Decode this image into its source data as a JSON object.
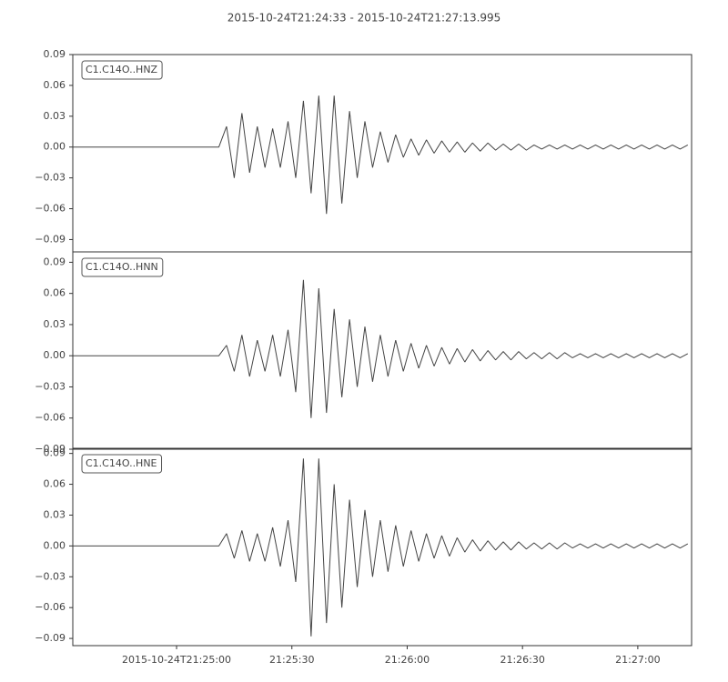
{
  "title": "2015-10-24T21:24:33  -  2015-10-24T21:27:13.995",
  "chart_data": [
    {
      "type": "line",
      "title": "C1.C14O..HNZ",
      "color": "#444444",
      "x": [
        "21:24:33",
        "21:24:35",
        "21:24:37",
        "21:24:39",
        "21:24:41",
        "21:24:43",
        "21:24:45",
        "21:24:47",
        "21:24:49",
        "21:24:51",
        "21:24:53",
        "21:24:55",
        "21:24:57",
        "21:24:59",
        "21:25:01",
        "21:25:03",
        "21:25:05",
        "21:25:07",
        "21:25:09",
        "21:25:11",
        "21:25:13",
        "21:25:15",
        "21:25:17",
        "21:25:19",
        "21:25:21",
        "21:25:23",
        "21:25:25",
        "21:25:27",
        "21:25:29",
        "21:25:31",
        "21:25:33",
        "21:25:35",
        "21:25:37",
        "21:25:39",
        "21:25:41",
        "21:25:43",
        "21:25:45",
        "21:25:47",
        "21:25:49",
        "21:25:51",
        "21:25:53",
        "21:25:55",
        "21:25:57",
        "21:25:59",
        "21:26:01",
        "21:26:03",
        "21:26:05",
        "21:26:07",
        "21:26:09",
        "21:26:11",
        "21:26:13",
        "21:26:15",
        "21:26:17",
        "21:26:19",
        "21:26:21",
        "21:26:23",
        "21:26:25",
        "21:26:27",
        "21:26:29",
        "21:26:31",
        "21:26:33",
        "21:26:35",
        "21:26:37",
        "21:26:39",
        "21:26:41",
        "21:26:43",
        "21:26:45",
        "21:26:47",
        "21:26:49",
        "21:26:51",
        "21:26:53",
        "21:26:55",
        "21:26:57",
        "21:26:59",
        "21:27:01",
        "21:27:03",
        "21:27:05",
        "21:27:07",
        "21:27:09",
        "21:27:11",
        "21:27:13"
      ],
      "values": [
        0,
        0,
        0,
        0,
        0,
        0,
        0,
        0,
        0,
        0,
        0,
        0,
        0,
        0,
        0,
        0,
        0,
        0,
        0,
        0,
        0.02,
        -0.03,
        0.033,
        -0.025,
        0.02,
        -0.02,
        0.018,
        -0.02,
        0.025,
        -0.03,
        0.045,
        -0.045,
        0.05,
        -0.065,
        0.05,
        -0.055,
        0.035,
        -0.03,
        0.025,
        -0.02,
        0.015,
        -0.015,
        0.012,
        -0.01,
        0.008,
        -0.008,
        0.007,
        -0.006,
        0.006,
        -0.005,
        0.005,
        -0.005,
        0.004,
        -0.004,
        0.004,
        -0.003,
        0.003,
        -0.003,
        0.003,
        -0.003,
        0.002,
        -0.002,
        0.002,
        -0.002,
        0.002,
        -0.002,
        0.002,
        -0.002,
        0.002,
        -0.002,
        0.002,
        -0.002,
        0.002,
        -0.002,
        0.002,
        -0.002,
        0.002,
        -0.002,
        0.002,
        -0.002,
        0.002
      ],
      "xlim": [
        "2015-10-24T21:24:33",
        "2015-10-24T21:27:13.995"
      ],
      "ylim": [
        -0.102,
        0.09
      ],
      "yticks": [
        0.09,
        0.06,
        0.03,
        {
          "value": 0,
          "label": "0.00"
        },
        {
          "value": -0.03,
          "label": "−0.03"
        },
        {
          "value": -0.06,
          "label": "−0.06"
        },
        {
          "value": -0.09,
          "label": "−0.09"
        }
      ]
    },
    {
      "type": "line",
      "title": "C1.C14O..HNN",
      "color": "#444444",
      "x": [
        "21:24:33",
        "21:24:35",
        "21:24:37",
        "21:24:39",
        "21:24:41",
        "21:24:43",
        "21:24:45",
        "21:24:47",
        "21:24:49",
        "21:24:51",
        "21:24:53",
        "21:24:55",
        "21:24:57",
        "21:24:59",
        "21:25:01",
        "21:25:03",
        "21:25:05",
        "21:25:07",
        "21:25:09",
        "21:25:11",
        "21:25:13",
        "21:25:15",
        "21:25:17",
        "21:25:19",
        "21:25:21",
        "21:25:23",
        "21:25:25",
        "21:25:27",
        "21:25:29",
        "21:25:31",
        "21:25:33",
        "21:25:35",
        "21:25:37",
        "21:25:39",
        "21:25:41",
        "21:25:43",
        "21:25:45",
        "21:25:47",
        "21:25:49",
        "21:25:51",
        "21:25:53",
        "21:25:55",
        "21:25:57",
        "21:25:59",
        "21:26:01",
        "21:26:03",
        "21:26:05",
        "21:26:07",
        "21:26:09",
        "21:26:11",
        "21:26:13",
        "21:26:15",
        "21:26:17",
        "21:26:19",
        "21:26:21",
        "21:26:23",
        "21:26:25",
        "21:26:27",
        "21:26:29",
        "21:26:31",
        "21:26:33",
        "21:26:35",
        "21:26:37",
        "21:26:39",
        "21:26:41",
        "21:26:43",
        "21:26:45",
        "21:26:47",
        "21:26:49",
        "21:26:51",
        "21:26:53",
        "21:26:55",
        "21:26:57",
        "21:26:59",
        "21:27:01",
        "21:27:03",
        "21:27:05",
        "21:27:07",
        "21:27:09",
        "21:27:11",
        "21:27:13"
      ],
      "values": [
        0,
        0,
        0,
        0,
        0,
        0,
        0,
        0,
        0,
        0,
        0,
        0,
        0,
        0,
        0,
        0,
        0,
        0,
        0,
        0,
        0.01,
        -0.015,
        0.02,
        -0.02,
        0.015,
        -0.015,
        0.02,
        -0.02,
        0.025,
        -0.035,
        0.073,
        -0.06,
        0.065,
        -0.055,
        0.045,
        -0.04,
        0.035,
        -0.03,
        0.028,
        -0.025,
        0.02,
        -0.02,
        0.015,
        -0.015,
        0.012,
        -0.012,
        0.01,
        -0.01,
        0.008,
        -0.008,
        0.007,
        -0.006,
        0.006,
        -0.005,
        0.005,
        -0.004,
        0.004,
        -0.004,
        0.004,
        -0.003,
        0.003,
        -0.003,
        0.003,
        -0.003,
        0.003,
        -0.002,
        0.002,
        -0.002,
        0.002,
        -0.002,
        0.002,
        -0.002,
        0.002,
        -0.002,
        0.002,
        -0.002,
        0.002,
        -0.002,
        0.002,
        -0.002,
        0.002
      ],
      "xlim": [
        "2015-10-24T21:24:33",
        "2015-10-24T21:27:13.995"
      ],
      "ylim": [
        -0.09,
        0.1
      ],
      "yticks": [
        0.09,
        0.06,
        0.03,
        {
          "value": 0,
          "label": "0.00"
        },
        {
          "value": -0.03,
          "label": "−0.03"
        },
        {
          "value": -0.06,
          "label": "−0.06"
        },
        {
          "value": -0.09,
          "label": "−0.09"
        }
      ]
    },
    {
      "type": "line",
      "title": "C1.C14O..HNE",
      "color": "#444444",
      "x": [
        "21:24:33",
        "21:24:35",
        "21:24:37",
        "21:24:39",
        "21:24:41",
        "21:24:43",
        "21:24:45",
        "21:24:47",
        "21:24:49",
        "21:24:51",
        "21:24:53",
        "21:24:55",
        "21:24:57",
        "21:24:59",
        "21:25:01",
        "21:25:03",
        "21:25:05",
        "21:25:07",
        "21:25:09",
        "21:25:11",
        "21:25:13",
        "21:25:15",
        "21:25:17",
        "21:25:19",
        "21:25:21",
        "21:25:23",
        "21:25:25",
        "21:25:27",
        "21:25:29",
        "21:25:31",
        "21:25:33",
        "21:25:35",
        "21:25:37",
        "21:25:39",
        "21:25:41",
        "21:25:43",
        "21:25:45",
        "21:25:47",
        "21:25:49",
        "21:25:51",
        "21:25:53",
        "21:25:55",
        "21:25:57",
        "21:25:59",
        "21:26:01",
        "21:26:03",
        "21:26:05",
        "21:26:07",
        "21:26:09",
        "21:26:11",
        "21:26:13",
        "21:26:15",
        "21:26:17",
        "21:26:19",
        "21:26:21",
        "21:26:23",
        "21:26:25",
        "21:26:27",
        "21:26:29",
        "21:26:31",
        "21:26:33",
        "21:26:35",
        "21:26:37",
        "21:26:39",
        "21:26:41",
        "21:26:43",
        "21:26:45",
        "21:26:47",
        "21:26:49",
        "21:26:51",
        "21:26:53",
        "21:26:55",
        "21:26:57",
        "21:26:59",
        "21:27:01",
        "21:27:03",
        "21:27:05",
        "21:27:07",
        "21:27:09",
        "21:27:11",
        "21:27:13"
      ],
      "values": [
        0,
        0,
        0,
        0,
        0,
        0,
        0,
        0,
        0,
        0,
        0,
        0,
        0,
        0,
        0,
        0,
        0,
        0,
        0,
        0,
        0.012,
        -0.012,
        0.015,
        -0.015,
        0.012,
        -0.015,
        0.018,
        -0.02,
        0.025,
        -0.035,
        0.085,
        -0.088,
        0.085,
        -0.075,
        0.06,
        -0.06,
        0.045,
        -0.04,
        0.035,
        -0.03,
        0.025,
        -0.025,
        0.02,
        -0.02,
        0.015,
        -0.015,
        0.012,
        -0.012,
        0.01,
        -0.01,
        0.008,
        -0.006,
        0.006,
        -0.005,
        0.005,
        -0.004,
        0.004,
        -0.004,
        0.004,
        -0.003,
        0.003,
        -0.003,
        0.003,
        -0.003,
        0.003,
        -0.002,
        0.002,
        -0.002,
        0.002,
        -0.002,
        0.002,
        -0.002,
        0.002,
        -0.002,
        0.002,
        -0.002,
        0.002,
        -0.002,
        0.002,
        -0.002,
        0.002
      ],
      "xlim": [
        "2015-10-24T21:24:33",
        "2015-10-24T21:27:13.995"
      ],
      "ylim": [
        -0.097,
        0.095
      ],
      "yticks": [
        0.09,
        0.06,
        0.03,
        {
          "value": 0,
          "label": "0.00"
        },
        {
          "value": -0.03,
          "label": "−0.03"
        },
        {
          "value": -0.06,
          "label": "−0.06"
        },
        {
          "value": -0.09,
          "label": "−0.09"
        }
      ],
      "xticks": [
        {
          "value": "21:25:00",
          "label": "2015-10-24T21:25:00"
        },
        "21:25:30",
        "21:26:00",
        "21:26:30",
        "21:27:00"
      ]
    }
  ]
}
